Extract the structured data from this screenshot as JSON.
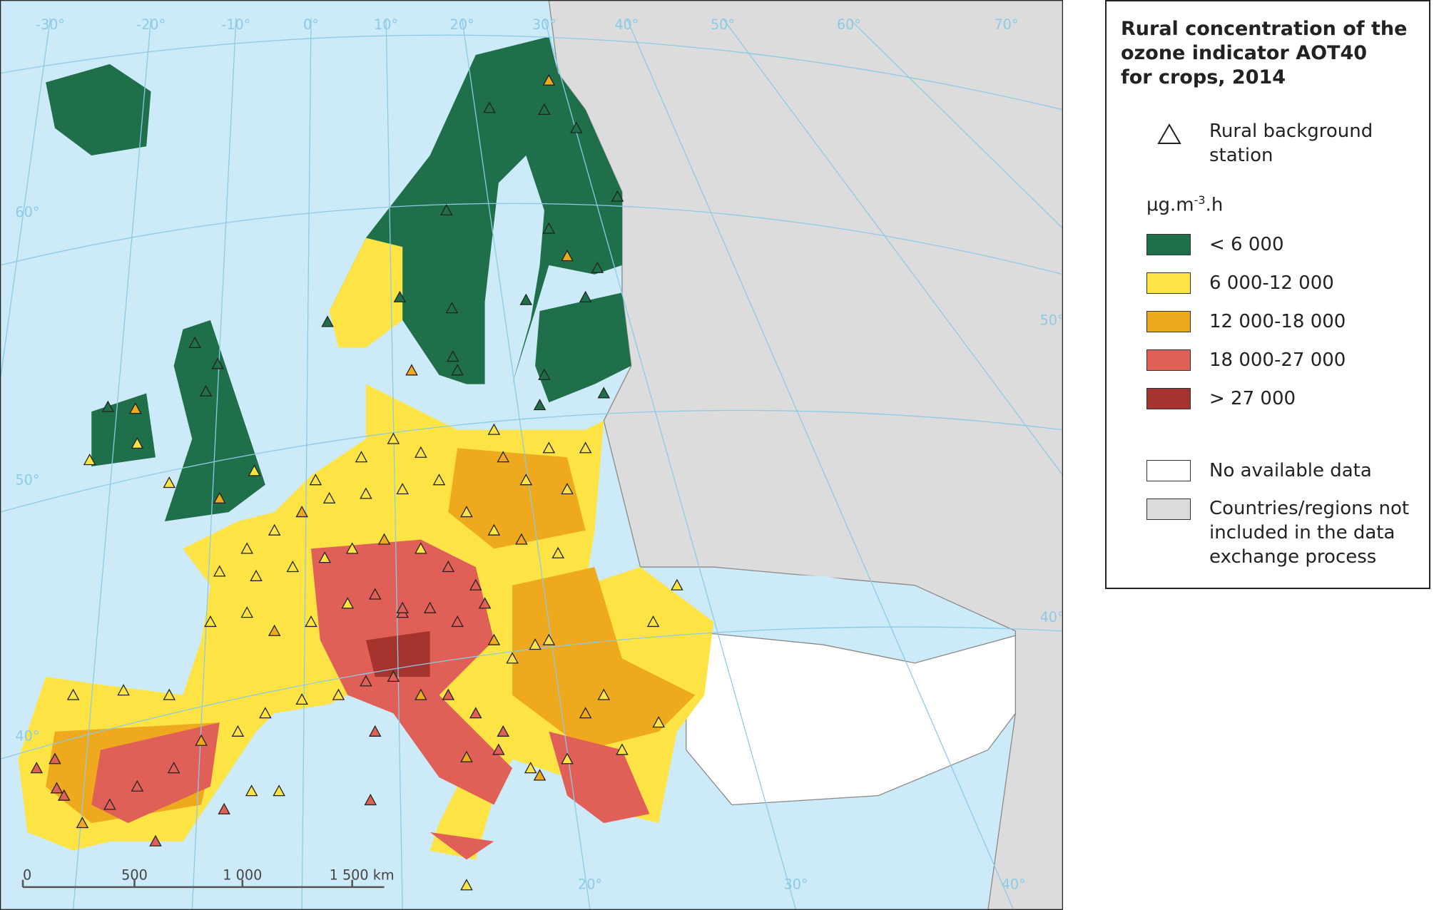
{
  "legend": {
    "title_lines": [
      "Rural concentration of the",
      "ozone indicator AOT40",
      "for crops, 2014"
    ],
    "station": "Rural background station",
    "unit": {
      "base": "µg.m",
      "exponent": "-3",
      "suffix": ".h"
    },
    "classes": [
      {
        "label": "< 6 000",
        "color": "#1f6f4b"
      },
      {
        "label": "6 000-12 000",
        "color": "#fde444"
      },
      {
        "label": "12 000-18 000",
        "color": "#efa91f"
      },
      {
        "label": "18 000-27 000",
        "color": "#e06058"
      },
      {
        "label": "> 27 000",
        "color": "#a5342f"
      }
    ],
    "no_data": "No available data",
    "not_included": "Countries/regions not included in the data exchange process"
  },
  "graticule": {
    "top_labels": [
      "-30°",
      "-20°",
      "-10°",
      "0°",
      "10°",
      "20°",
      "30°",
      "40°",
      "50°",
      "60°",
      "70°"
    ],
    "left_labels": [
      "60°",
      "50°",
      "40°"
    ],
    "bottom_labels": [
      "20°",
      "30°",
      "40°"
    ],
    "right_labels": [
      "50°",
      "40°"
    ]
  },
  "scale_bar": {
    "labels": [
      "0",
      "500",
      "1 000",
      "1 500 km"
    ]
  }
}
